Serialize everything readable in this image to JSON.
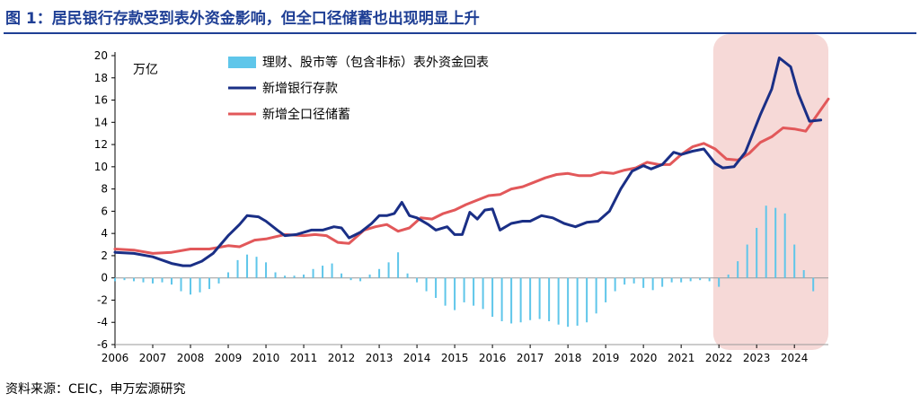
{
  "figure_title": "图 1：居民银行存款受到表外资金影响，但全口径储蓄也出现明显上升",
  "source_note": "资料来源：CEIC，申万宏源研究",
  "colors": {
    "title": "#1f3f95",
    "bars": "#5fc6ea",
    "deposits_line": "#1a2f86",
    "savings_line": "#e2585a",
    "highlight": "#f4d2d0"
  },
  "chart_data": {
    "type": "line",
    "unit_label": "万亿",
    "xlim": [
      2006,
      2024.9
    ],
    "ylim": [
      -6,
      20
    ],
    "yticks": [
      -6,
      -4,
      -2,
      0,
      2,
      4,
      6,
      8,
      10,
      12,
      14,
      16,
      18,
      20
    ],
    "xticks": [
      "2006",
      "2007",
      "2008",
      "2009",
      "2010",
      "2011",
      "2012",
      "2013",
      "2014",
      "2015",
      "2016",
      "2017",
      "2018",
      "2019",
      "2020",
      "2021",
      "2022",
      "2023",
      "2024"
    ],
    "highlight_x_range": [
      2021.85,
      2024.9
    ],
    "series": [
      {
        "name": "理财、股市等（包含非标）表外资金回表",
        "kind": "bar",
        "x": [
          2006.0,
          2006.25,
          2006.5,
          2006.75,
          2007.0,
          2007.25,
          2007.5,
          2007.75,
          2008.0,
          2008.25,
          2008.5,
          2008.75,
          2009.0,
          2009.25,
          2009.5,
          2009.75,
          2010.0,
          2010.25,
          2010.5,
          2010.75,
          2011.0,
          2011.25,
          2011.5,
          2011.75,
          2012.0,
          2012.25,
          2012.5,
          2012.75,
          2013.0,
          2013.25,
          2013.5,
          2013.75,
          2014.0,
          2014.25,
          2014.5,
          2014.75,
          2015.0,
          2015.25,
          2015.5,
          2015.75,
          2016.0,
          2016.25,
          2016.5,
          2016.75,
          2017.0,
          2017.25,
          2017.5,
          2017.75,
          2018.0,
          2018.25,
          2018.5,
          2018.75,
          2019.0,
          2019.25,
          2019.5,
          2019.75,
          2020.0,
          2020.25,
          2020.5,
          2020.75,
          2021.0,
          2021.25,
          2021.5,
          2021.75,
          2022.0,
          2022.25,
          2022.5,
          2022.75,
          2023.0,
          2023.25,
          2023.5,
          2023.75,
          2024.0,
          2024.25,
          2024.5
        ],
        "values": [
          -0.3,
          -0.2,
          -0.3,
          -0.4,
          -0.5,
          -0.4,
          -0.6,
          -1.2,
          -1.5,
          -1.3,
          -1.0,
          -0.5,
          0.5,
          1.6,
          2.1,
          1.9,
          1.4,
          0.5,
          0.2,
          0.2,
          0.3,
          0.8,
          1.1,
          1.3,
          0.4,
          -0.2,
          -0.3,
          0.3,
          0.8,
          1.4,
          2.3,
          0.4,
          -0.4,
          -1.2,
          -1.8,
          -2.5,
          -2.9,
          -2.2,
          -2.5,
          -2.8,
          -3.5,
          -3.9,
          -4.1,
          -4.0,
          -3.8,
          -3.7,
          -3.9,
          -4.2,
          -4.4,
          -4.3,
          -4.0,
          -3.2,
          -2.2,
          -1.2,
          -0.6,
          -0.5,
          -0.9,
          -1.1,
          -0.8,
          -0.4,
          -0.4,
          -0.3,
          -0.2,
          -0.3,
          -0.8,
          0.3,
          1.5,
          3.0,
          4.5,
          6.5,
          6.3,
          5.8,
          3.0,
          0.7,
          -1.2
        ]
      },
      {
        "name": "新增银行存款",
        "kind": "line",
        "x": [
          2006.0,
          2006.5,
          2007.0,
          2007.5,
          2007.8,
          2008.0,
          2008.3,
          2008.6,
          2009.0,
          2009.3,
          2009.5,
          2009.8,
          2010.0,
          2010.3,
          2010.5,
          2010.8,
          2011.0,
          2011.2,
          2011.5,
          2011.8,
          2012.0,
          2012.2,
          2012.5,
          2012.8,
          2013.0,
          2013.2,
          2013.4,
          2013.6,
          2013.8,
          2014.0,
          2014.3,
          2014.5,
          2014.8,
          2015.0,
          2015.2,
          2015.4,
          2015.6,
          2015.8,
          2016.0,
          2016.2,
          2016.5,
          2016.8,
          2017.0,
          2017.3,
          2017.6,
          2017.9,
          2018.2,
          2018.5,
          2018.8,
          2019.1,
          2019.4,
          2019.7,
          2020.0,
          2020.2,
          2020.5,
          2020.8,
          2021.0,
          2021.3,
          2021.6,
          2021.9,
          2022.1,
          2022.4,
          2022.7,
          2022.9,
          2023.1,
          2023.4,
          2023.6,
          2023.9,
          2024.1,
          2024.4,
          2024.7
        ],
        "values": [
          2.3,
          2.2,
          1.9,
          1.3,
          1.1,
          1.1,
          1.5,
          2.2,
          3.8,
          4.8,
          5.6,
          5.5,
          5.1,
          4.3,
          3.8,
          3.9,
          4.1,
          4.3,
          4.3,
          4.6,
          4.5,
          3.6,
          4.1,
          4.9,
          5.6,
          5.6,
          5.8,
          6.8,
          5.6,
          5.4,
          4.8,
          4.3,
          4.6,
          3.9,
          3.9,
          5.9,
          5.3,
          6.1,
          6.2,
          4.3,
          4.9,
          5.1,
          5.1,
          5.6,
          5.4,
          4.9,
          4.6,
          5.0,
          5.1,
          6.0,
          8.0,
          9.6,
          10.1,
          9.8,
          10.2,
          11.3,
          11.1,
          11.4,
          11.6,
          10.3,
          9.9,
          10.0,
          11.3,
          13.0,
          14.7,
          17.0,
          19.8,
          19.0,
          16.6,
          14.1,
          14.2
        ]
      },
      {
        "name": "新增全口径储蓄",
        "kind": "line",
        "x": [
          2006.0,
          2006.5,
          2007.0,
          2007.5,
          2008.0,
          2008.5,
          2009.0,
          2009.3,
          2009.7,
          2010.0,
          2010.5,
          2011.0,
          2011.3,
          2011.6,
          2011.9,
          2012.2,
          2012.6,
          2012.9,
          2013.2,
          2013.5,
          2013.8,
          2014.1,
          2014.4,
          2014.7,
          2015.0,
          2015.3,
          2015.6,
          2015.9,
          2016.2,
          2016.5,
          2016.8,
          2017.1,
          2017.4,
          2017.7,
          2018.0,
          2018.3,
          2018.6,
          2018.9,
          2019.2,
          2019.5,
          2019.8,
          2020.1,
          2020.4,
          2020.7,
          2021.0,
          2021.3,
          2021.6,
          2021.9,
          2022.2,
          2022.5,
          2022.8,
          2023.1,
          2023.4,
          2023.7,
          2024.0,
          2024.3,
          2024.9
        ],
        "values": [
          2.6,
          2.5,
          2.2,
          2.3,
          2.6,
          2.6,
          2.9,
          2.8,
          3.4,
          3.5,
          3.9,
          3.8,
          3.9,
          3.8,
          3.2,
          3.1,
          4.3,
          4.6,
          4.8,
          4.2,
          4.5,
          5.4,
          5.3,
          5.8,
          6.1,
          6.6,
          7.0,
          7.4,
          7.5,
          8.0,
          8.2,
          8.6,
          9.0,
          9.3,
          9.4,
          9.2,
          9.2,
          9.5,
          9.4,
          9.7,
          9.9,
          10.4,
          10.2,
          10.2,
          11.1,
          11.8,
          12.1,
          11.6,
          10.7,
          10.6,
          11.2,
          12.2,
          12.7,
          13.5,
          13.4,
          13.2,
          16.1
        ]
      }
    ]
  }
}
